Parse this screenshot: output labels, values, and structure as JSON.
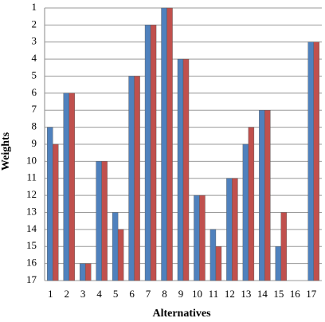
{
  "chart_data": {
    "type": "bar",
    "x_label": "Alternatives",
    "y_label": "Weights",
    "categories": [
      "1",
      "2",
      "3",
      "4",
      "5",
      "6",
      "7",
      "8",
      "9",
      "10",
      "11",
      "12",
      "13",
      "14",
      "15",
      "16",
      "17"
    ],
    "series": [
      {
        "color": "#4f81bd",
        "values": [
          8,
          6,
          16,
          10,
          13,
          5,
          2,
          1,
          4,
          12,
          14,
          11,
          9,
          7,
          15,
          17,
          3
        ]
      },
      {
        "color": "#c0504d",
        "values": [
          9,
          6,
          16,
          10,
          14,
          5,
          2,
          1,
          4,
          12,
          15,
          11,
          8,
          7,
          13,
          17,
          3
        ]
      }
    ],
    "ylim": [
      17,
      1
    ],
    "yticks": [
      1,
      2,
      3,
      4,
      5,
      6,
      7,
      8,
      9,
      10,
      11,
      12,
      13,
      14,
      15,
      16,
      17
    ],
    "grid": true
  }
}
